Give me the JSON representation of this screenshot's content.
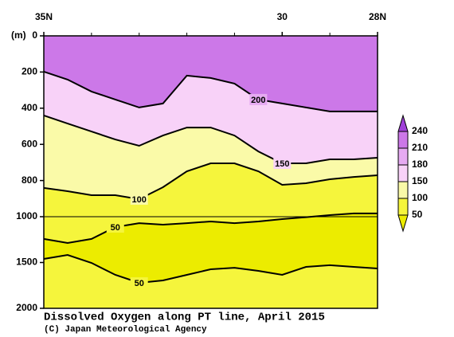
{
  "chart_data": {
    "type": "contour",
    "title": "Dissolved Oxygen along PT line, April 2015",
    "credit": "(C) Japan Meteorological Agency",
    "y_unit": "(m)",
    "x": [
      35,
      34.5,
      34,
      33.5,
      33,
      32.5,
      32,
      31.5,
      31,
      30.5,
      30,
      29.5,
      29,
      28.5,
      28
    ],
    "xlim": [
      35,
      28
    ],
    "xticks": [
      {
        "value": 35,
        "label": "35N"
      },
      30,
      {
        "value": 28,
        "label": "28N"
      }
    ],
    "xminorticks": [
      34,
      33,
      32,
      31,
      29
    ],
    "ylim": [
      0,
      2000
    ],
    "ybreak": 1000,
    "yticks": [
      0,
      200,
      400,
      600,
      800,
      1000,
      1500,
      2000
    ],
    "contours": [
      {
        "level": 200,
        "depths": [
          198,
          242,
          308,
          352,
          396,
          374,
          220,
          233,
          264,
          352,
          374,
          396,
          418,
          418,
          418
        ]
      },
      {
        "level": 150,
        "depths": [
          440,
          485,
          529,
          573,
          608,
          551,
          507,
          507,
          551,
          639,
          705,
          705,
          683,
          683,
          674
        ]
      },
      {
        "level": 100,
        "depths": [
          841,
          859,
          881,
          881,
          903,
          837,
          749,
          705,
          705,
          749,
          824,
          815,
          793,
          780,
          771
        ]
      },
      {
        "level": 50,
        "depths": [
          1243,
          1287,
          1243,
          1113,
          1070,
          1087,
          1070,
          1052,
          1070,
          1052,
          1026,
          1005,
          991,
          982,
          982
        ]
      },
      {
        "level": 50,
        "depths": [
          1461,
          1417,
          1504,
          1635,
          1722,
          1696,
          1635,
          1574,
          1557,
          1591,
          1635,
          1548,
          1530,
          1548,
          1565
        ]
      }
    ],
    "colorbar": {
      "levels": [
        50,
        100,
        150,
        180,
        210,
        240
      ],
      "colors": [
        "#ecec00",
        "#f5f53c",
        "#fafaa8",
        "#f8d2f8",
        "#e6aaf2",
        "#cc78e8",
        "#a040d8"
      ]
    }
  }
}
